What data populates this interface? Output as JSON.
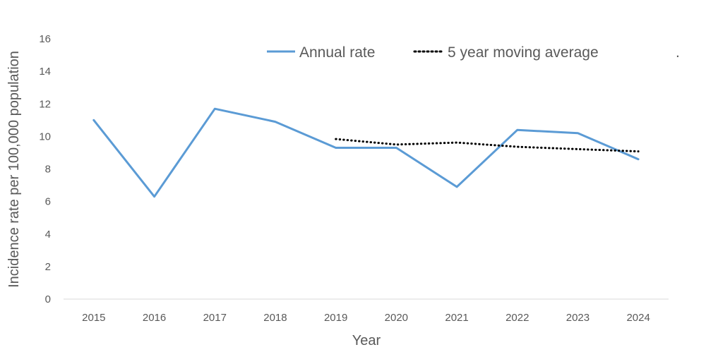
{
  "chart_data": {
    "type": "line",
    "categories": [
      "2015",
      "2016",
      "2017",
      "2018",
      "2019",
      "2020",
      "2021",
      "2022",
      "2023",
      "2024"
    ],
    "series": [
      {
        "name": "Annual rate",
        "color": "#5b9bd5",
        "style": "solid",
        "values": [
          11.0,
          6.3,
          11.7,
          10.9,
          9.3,
          9.3,
          6.9,
          10.4,
          10.2,
          8.6
        ]
      },
      {
        "name": "5 year moving average",
        "color": "#000000",
        "style": "dotted",
        "values": [
          null,
          null,
          null,
          null,
          9.84,
          9.5,
          9.62,
          9.36,
          9.22,
          9.08
        ]
      }
    ],
    "title": "",
    "xlabel": "Year",
    "ylabel": "Incidence rate per 100,000 population",
    "ylim": [
      0,
      16
    ],
    "yticks": [
      0,
      2,
      4,
      6,
      8,
      10,
      12,
      14,
      16
    ],
    "grid": false,
    "legend_position": "top",
    "legend_trailing_mark": "."
  }
}
